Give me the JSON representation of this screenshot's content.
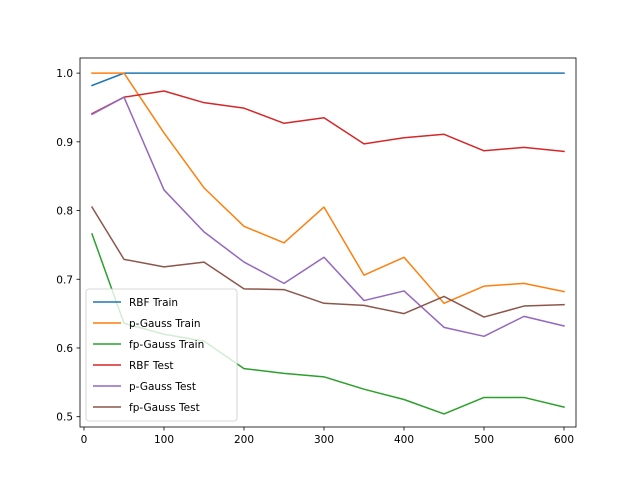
{
  "chart_data": {
    "type": "line",
    "title": "",
    "xlabel": "",
    "ylabel": "",
    "xlim": [
      -5,
      615
    ],
    "ylim": [
      0.485,
      1.022
    ],
    "xticks": [
      0,
      100,
      200,
      300,
      400,
      500,
      600
    ],
    "yticks": [
      0.5,
      0.6,
      0.7,
      0.8,
      0.9,
      1.0
    ],
    "xtick_labels": [
      "0",
      "100",
      "200",
      "300",
      "400",
      "500",
      "600"
    ],
    "ytick_labels": [
      "0.5",
      "0.6",
      "0.7",
      "0.8",
      "0.9",
      "1.0"
    ],
    "legend_position": "lower-left",
    "x": [
      10,
      50,
      100,
      150,
      200,
      250,
      300,
      350,
      400,
      450,
      500,
      550,
      600
    ],
    "series": [
      {
        "name": "RBF Train",
        "color": "#1f77b4",
        "values": [
          0.982,
          1.0,
          1.0,
          1.0,
          1.0,
          1.0,
          1.0,
          1.0,
          1.0,
          1.0,
          1.0,
          1.0,
          1.0
        ]
      },
      {
        "name": "p-Gauss Train",
        "color": "#ff7f0e",
        "values": [
          1.0,
          1.0,
          0.913,
          0.833,
          0.777,
          0.753,
          0.805,
          0.706,
          0.732,
          0.665,
          0.69,
          0.694,
          0.682
        ]
      },
      {
        "name": "fp-Gauss Train",
        "color": "#2ca02c",
        "values": [
          0.766,
          0.636,
          0.62,
          0.61,
          0.57,
          0.563,
          0.558,
          0.54,
          0.525,
          0.504,
          0.528,
          0.528,
          0.514
        ]
      },
      {
        "name": "RBF Test",
        "color": "#d62728",
        "values": [
          0.941,
          0.965,
          0.974,
          0.957,
          0.949,
          0.927,
          0.935,
          0.897,
          0.906,
          0.911,
          0.887,
          0.892,
          0.886
        ]
      },
      {
        "name": "p-Gauss Test",
        "color": "#9467bd",
        "values": [
          0.94,
          0.965,
          0.83,
          0.769,
          0.725,
          0.694,
          0.732,
          0.669,
          0.683,
          0.63,
          0.617,
          0.646,
          0.632
        ]
      },
      {
        "name": "fp-Gauss Test",
        "color": "#8c564b",
        "values": [
          0.805,
          0.729,
          0.718,
          0.725,
          0.686,
          0.685,
          0.665,
          0.662,
          0.65,
          0.675,
          0.645,
          0.661,
          0.663
        ]
      }
    ]
  }
}
